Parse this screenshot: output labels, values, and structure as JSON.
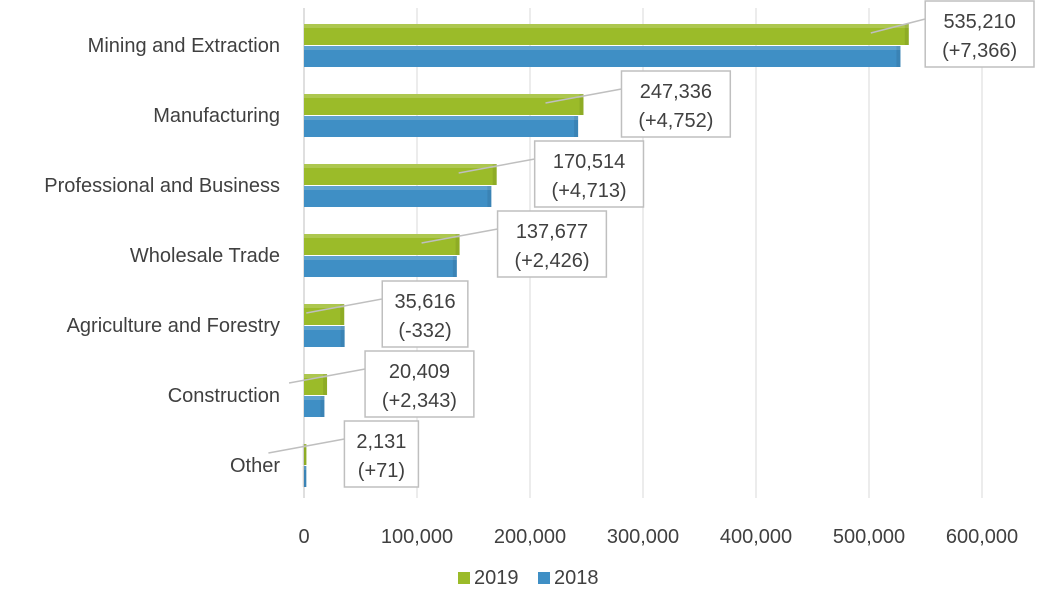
{
  "chart_data": {
    "type": "bar",
    "orientation": "horizontal",
    "categories": [
      "Mining and Extraction",
      "Manufacturing",
      "Professional and Business",
      "Wholesale Trade",
      "Agriculture and Forestry",
      "Construction",
      "Other"
    ],
    "series": [
      {
        "name": "2019",
        "color": "#9bbb29",
        "values": [
          535210,
          247336,
          170514,
          137677,
          35616,
          20409,
          2131
        ]
      },
      {
        "name": "2018",
        "color": "#3f8fc5",
        "values": [
          527844,
          242584,
          165801,
          135251,
          35948,
          18066,
          2060
        ]
      }
    ],
    "data_labels": [
      {
        "value": "535,210",
        "change": "(+7,366)"
      },
      {
        "value": "247,336",
        "change": "(+4,752)"
      },
      {
        "value": "170,514",
        "change": "(+4,713)"
      },
      {
        "value": "137,677",
        "change": "(+2,426)"
      },
      {
        "value": "35,616",
        "change": "(-332)"
      },
      {
        "value": "20,409",
        "change": "(+2,343)"
      },
      {
        "value": "2,131",
        "change": "(+71)"
      }
    ],
    "x_ticks": [
      "0",
      "100,000",
      "200,000",
      "300,000",
      "400,000",
      "500,000",
      "600,000"
    ],
    "xlim": [
      0,
      650000
    ],
    "grid": "vertical",
    "legend": {
      "position": "bottom",
      "items": [
        "2019",
        "2018"
      ]
    },
    "title": "",
    "xlabel": "",
    "ylabel": ""
  }
}
